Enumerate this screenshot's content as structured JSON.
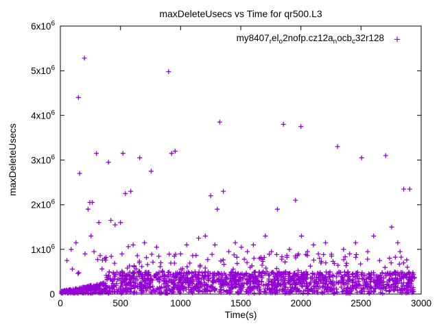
{
  "colors": {
    "points": "#9400d3",
    "axis": "#000000",
    "background": "#ffffff"
  },
  "legend": {
    "marker": "+",
    "segments": [
      {
        "t": "my8407",
        "sub": false
      },
      {
        "t": "r",
        "sub": true
      },
      {
        "t": "el",
        "sub": false
      },
      {
        "t": "o",
        "sub": true
      },
      {
        "t": "2nofp.cz12a",
        "sub": false
      },
      {
        "t": "n",
        "sub": true
      },
      {
        "t": "ocb",
        "sub": false
      },
      {
        "t": "c",
        "sub": true
      },
      {
        "t": "32r128",
        "sub": false
      }
    ]
  },
  "chart_data": {
    "type": "scatter",
    "title": "maxDeleteUsecs vs Time for qr500.L3",
    "xlabel": "Time(s)",
    "ylabel": "maxDeleteUsecs",
    "xlim": [
      0,
      3000
    ],
    "ylim": [
      0,
      6000000
    ],
    "grid": false,
    "legend_position": "top-right-inside",
    "x_ticks": [
      {
        "v": 0,
        "label": "0"
      },
      {
        "v": 500,
        "label": "500"
      },
      {
        "v": 1000,
        "label": "1000"
      },
      {
        "v": 1500,
        "label": "1500"
      },
      {
        "v": 2000,
        "label": "2000"
      },
      {
        "v": 2500,
        "label": "2500"
      },
      {
        "v": 3000,
        "label": "3000"
      }
    ],
    "y_ticks": [
      {
        "v": 0,
        "label": "0"
      },
      {
        "v": 1000000,
        "label": "1x10^6"
      },
      {
        "v": 2000000,
        "label": "2x10^6"
      },
      {
        "v": 3000000,
        "label": "3x10^6"
      },
      {
        "v": 4000000,
        "label": "4x10^6"
      },
      {
        "v": 5000000,
        "label": "5x10^6"
      },
      {
        "v": 6000000,
        "label": "6x10^6"
      }
    ],
    "series": [
      {
        "name": "my8407_rel_o2nofp.cz12a_nocb_c32r128",
        "marker": "+",
        "color": "#9400d3",
        "outlier_points": [
          [
            55,
            750000
          ],
          [
            90,
            1000000
          ],
          [
            100,
            560000
          ],
          [
            130,
            1150000
          ],
          [
            150,
            4400000
          ],
          [
            160,
            2700000
          ],
          [
            200,
            5280000
          ],
          [
            205,
            900000
          ],
          [
            230,
            1900000
          ],
          [
            245,
            2050000
          ],
          [
            255,
            1300000
          ],
          [
            265,
            2050000
          ],
          [
            280,
            950000
          ],
          [
            300,
            3150000
          ],
          [
            320,
            1600000
          ],
          [
            350,
            760000
          ],
          [
            380,
            820000
          ],
          [
            400,
            2950000
          ],
          [
            420,
            1650000
          ],
          [
            455,
            1550000
          ],
          [
            500,
            1600000
          ],
          [
            520,
            3150000
          ],
          [
            540,
            2250000
          ],
          [
            565,
            1060000
          ],
          [
            585,
            2300000
          ],
          [
            605,
            1100000
          ],
          [
            640,
            860000
          ],
          [
            660,
            3050000
          ],
          [
            700,
            1150000
          ],
          [
            725,
            660000
          ],
          [
            755,
            2750000
          ],
          [
            800,
            1050000
          ],
          [
            835,
            700000
          ],
          [
            900,
            4980000
          ],
          [
            925,
            3150000
          ],
          [
            955,
            3200000
          ],
          [
            1000,
            900000
          ],
          [
            1050,
            1100000
          ],
          [
            1100,
            860000
          ],
          [
            1150,
            1250000
          ],
          [
            1205,
            1300000
          ],
          [
            1250,
            2200000
          ],
          [
            1285,
            1100000
          ],
          [
            1305,
            1900000
          ],
          [
            1325,
            3850000
          ],
          [
            1355,
            2300000
          ],
          [
            1400,
            950000
          ],
          [
            1455,
            1150000
          ],
          [
            1505,
            1050000
          ],
          [
            1555,
            950000
          ],
          [
            1605,
            1100000
          ],
          [
            1655,
            800000
          ],
          [
            1705,
            1300000
          ],
          [
            1755,
            950000
          ],
          [
            1805,
            1900000
          ],
          [
            1855,
            3800000
          ],
          [
            1905,
            1000000
          ],
          [
            1955,
            2100000
          ],
          [
            2000,
            3750000
          ],
          [
            2005,
            1300000
          ],
          [
            2055,
            950000
          ],
          [
            2105,
            1100000
          ],
          [
            2155,
            800000
          ],
          [
            2205,
            1150000
          ],
          [
            2255,
            850000
          ],
          [
            2305,
            3300000
          ],
          [
            2355,
            1000000
          ],
          [
            2405,
            900000
          ],
          [
            2455,
            1150000
          ],
          [
            2505,
            3050000
          ],
          [
            2555,
            950000
          ],
          [
            2605,
            1300000
          ],
          [
            2655,
            750000
          ],
          [
            2705,
            3100000
          ],
          [
            2755,
            1500000
          ],
          [
            2805,
            1150000
          ],
          [
            2825,
            950000
          ],
          [
            2855,
            2350000
          ],
          [
            2885,
            600000
          ],
          [
            2905,
            2350000
          ]
        ],
        "dense_band": {
          "count": 1600,
          "x_min": 5,
          "x_max": 2945,
          "y_min": 15000,
          "y_max": 500000,
          "ramp_until_x": 380,
          "ramp_y_max": 260000,
          "seed": 42
        },
        "mid_band": {
          "count": 110,
          "x_min": 120,
          "x_max": 2945,
          "y_min": 450000,
          "y_max": 900000,
          "seed": 7
        }
      }
    ]
  }
}
